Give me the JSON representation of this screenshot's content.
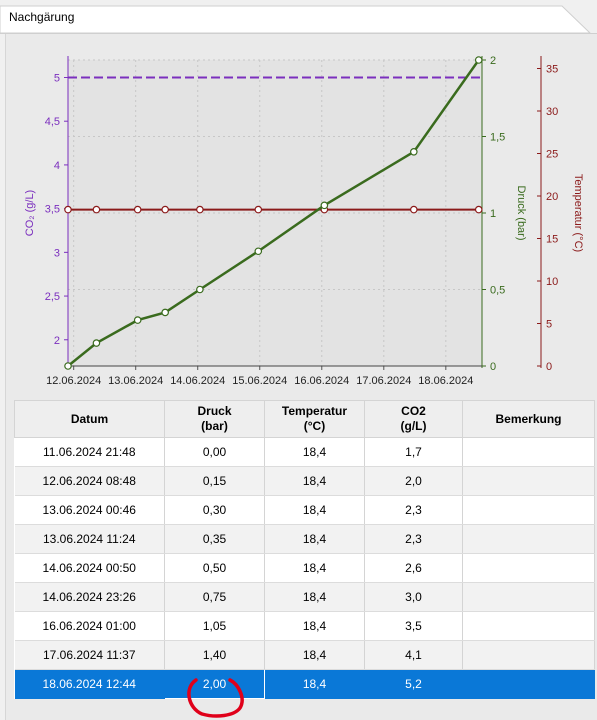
{
  "tab": {
    "title": "Nachgärung"
  },
  "colors": {
    "co2": "#7b2fbe",
    "druck": "#3a6b1e",
    "temperatur": "#8b1a1a",
    "co2_target": "#7b2fbe",
    "selection": "#0a78d7",
    "annotation": "#e0001a"
  },
  "chart_data": {
    "type": "line",
    "x_ticks": [
      "12.06.2024",
      "13.06.2024",
      "14.06.2024",
      "15.06.2024",
      "16.06.2024",
      "17.06.2024",
      "18.06.2024"
    ],
    "axes": {
      "co2": {
        "label": "CO₂ (g/L)",
        "side": "left",
        "range": [
          1.7,
          5.2
        ],
        "ticks": [
          "2",
          "2,5",
          "3",
          "3,5",
          "4",
          "4,5",
          "5"
        ],
        "tick_values": [
          2,
          2.5,
          3,
          3.5,
          4,
          4.5,
          5
        ]
      },
      "druck": {
        "label": "Druck (bar)",
        "side": "right",
        "range": [
          0,
          2
        ],
        "ticks": [
          "0",
          "0,5",
          "1",
          "1,5",
          "2"
        ],
        "tick_values": [
          0,
          0.5,
          1,
          1.5,
          2
        ]
      },
      "temperatur": {
        "label": "Temperatur (°C)",
        "side": "right",
        "range": [
          0,
          36
        ],
        "ticks": [
          "0",
          "5",
          "10",
          "15",
          "20",
          "25",
          "30",
          "35"
        ],
        "tick_values": [
          0,
          5,
          10,
          15,
          20,
          25,
          30,
          35
        ]
      }
    },
    "grid": true,
    "x": [
      "2024-06-11 21:48",
      "2024-06-12 08:48",
      "2024-06-13 00:46",
      "2024-06-13 11:24",
      "2024-06-14 00:50",
      "2024-06-14 23:26",
      "2024-06-16 01:00",
      "2024-06-17 11:37",
      "2024-06-18 12:44"
    ],
    "series": [
      {
        "axis": "druck",
        "values": [
          0.0,
          0.15,
          0.3,
          0.35,
          0.5,
          0.75,
          1.05,
          1.4,
          2.0
        ]
      },
      {
        "axis": "temperatur",
        "values": [
          18.4,
          18.4,
          18.4,
          18.4,
          18.4,
          18.4,
          18.4,
          18.4,
          18.4
        ]
      }
    ],
    "reference_lines": [
      {
        "axis": "co2",
        "value": 5.0,
        "style": "dashed"
      }
    ]
  },
  "table": {
    "headers": {
      "date": "Datum",
      "druck_l1": "Druck",
      "druck_l2": "(bar)",
      "temp_l1": "Temperatur",
      "temp_l2": "(°C)",
      "co2_l1": "CO2",
      "co2_l2": "(g/L)",
      "remark": "Bemerkung"
    },
    "rows": [
      {
        "date": "11.06.2024 21:48",
        "druck": "0,00",
        "temp": "18,4",
        "co2": "1,7",
        "remark": ""
      },
      {
        "date": "12.06.2024 08:48",
        "druck": "0,15",
        "temp": "18,4",
        "co2": "2,0",
        "remark": ""
      },
      {
        "date": "13.06.2024 00:46",
        "druck": "0,30",
        "temp": "18,4",
        "co2": "2,3",
        "remark": ""
      },
      {
        "date": "13.06.2024 11:24",
        "druck": "0,35",
        "temp": "18,4",
        "co2": "2,3",
        "remark": ""
      },
      {
        "date": "14.06.2024 00:50",
        "druck": "0,50",
        "temp": "18,4",
        "co2": "2,6",
        "remark": ""
      },
      {
        "date": "14.06.2024 23:26",
        "druck": "0,75",
        "temp": "18,4",
        "co2": "3,0",
        "remark": ""
      },
      {
        "date": "16.06.2024 01:00",
        "druck": "1,05",
        "temp": "18,4",
        "co2": "3,5",
        "remark": ""
      },
      {
        "date": "17.06.2024 11:37",
        "druck": "1,40",
        "temp": "18,4",
        "co2": "4,1",
        "remark": ""
      },
      {
        "date": "18.06.2024 12:44",
        "druck": "2,00",
        "temp": "18,4",
        "co2": "5,2",
        "remark": ""
      }
    ],
    "selected_row": 8
  }
}
